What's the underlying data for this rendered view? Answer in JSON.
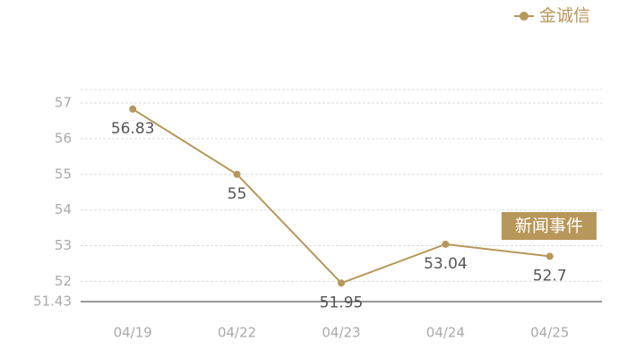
{
  "chart_data": {
    "type": "line",
    "categories": [
      "04/19",
      "04/22",
      "04/23",
      "04/24",
      "04/25"
    ],
    "series": [
      {
        "name": "金诚信",
        "color": "#b8975a",
        "values": [
          56.83,
          55,
          51.95,
          53.04,
          52.7
        ]
      }
    ],
    "ylim": [
      51.43,
      57.38
    ],
    "yticks": [
      51.43,
      52,
      53,
      54,
      55,
      56,
      57
    ],
    "grid": true,
    "legend": "top-right",
    "annotation": "新闻事件"
  }
}
